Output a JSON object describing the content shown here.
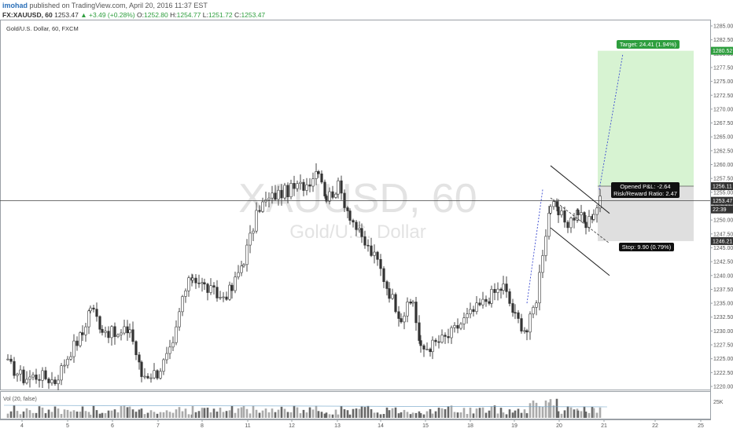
{
  "header": {
    "user": "imohad",
    "published": "published on TradingView.com, April 20, 2016 11:37 EST",
    "symbol": "FX:XAUUSD, 60",
    "last": "1253.47",
    "change": "+3.49 (+0.28%)",
    "o_label": "O:",
    "o": "1252.80",
    "h_label": "H:",
    "h": "1254.77",
    "l_label": "L:",
    "l": "1251.72",
    "c_label": "C:",
    "c": "1253.47"
  },
  "chart_data": {
    "type": "candlestick",
    "title": "Gold/U.S. Dollar, 60, FXCM",
    "watermark_symbol": "XAUUSD, 60",
    "watermark_name": "Gold/U.S. Dollar",
    "ylim": [
      1218.5,
      1286.5
    ],
    "y_ticks": [
      "1285.00",
      "1282.50",
      "1280.00",
      "1277.50",
      "1275.00",
      "1272.50",
      "1270.00",
      "1267.50",
      "1265.00",
      "1262.50",
      "1260.00",
      "1257.50",
      "1255.00",
      "1252.50",
      "1250.00",
      "1247.50",
      "1245.00",
      "1242.50",
      "1240.00",
      "1237.50",
      "1235.00",
      "1232.50",
      "1230.00",
      "1227.50",
      "1225.00",
      "1222.50",
      "1220.00"
    ],
    "x_ticks": [
      "4",
      "5",
      "6",
      "7",
      "8",
      "11",
      "12",
      "13",
      "14",
      "15",
      "18",
      "19",
      "20",
      "21",
      "22",
      "25"
    ],
    "price_path": [
      {
        "bar": 0,
        "price": 1224.0
      },
      {
        "bar": 20,
        "price": 1221.5
      },
      {
        "bar": 40,
        "price": 1222.0
      },
      {
        "bar": 60,
        "price": 1221.0
      },
      {
        "bar": 80,
        "price": 1226.5
      },
      {
        "bar": 95,
        "price": 1229.5
      },
      {
        "bar": 105,
        "price": 1234.5
      },
      {
        "bar": 120,
        "price": 1230.5
      },
      {
        "bar": 140,
        "price": 1229.0
      },
      {
        "bar": 155,
        "price": 1230.5
      },
      {
        "bar": 170,
        "price": 1222.0
      },
      {
        "bar": 190,
        "price": 1222.5
      },
      {
        "bar": 210,
        "price": 1227.0
      },
      {
        "bar": 222,
        "price": 1236.0
      },
      {
        "bar": 235,
        "price": 1240.0
      },
      {
        "bar": 250,
        "price": 1238.0
      },
      {
        "bar": 270,
        "price": 1236.0
      },
      {
        "bar": 285,
        "price": 1237.5
      },
      {
        "bar": 300,
        "price": 1243.0
      },
      {
        "bar": 320,
        "price": 1252.5
      },
      {
        "bar": 340,
        "price": 1254.5
      },
      {
        "bar": 360,
        "price": 1255.5
      },
      {
        "bar": 380,
        "price": 1256.5
      },
      {
        "bar": 395,
        "price": 1259.5
      },
      {
        "bar": 405,
        "price": 1254.0
      },
      {
        "bar": 420,
        "price": 1256.0
      },
      {
        "bar": 435,
        "price": 1251.0
      },
      {
        "bar": 450,
        "price": 1246.5
      },
      {
        "bar": 470,
        "price": 1242.5
      },
      {
        "bar": 485,
        "price": 1237.0
      },
      {
        "bar": 500,
        "price": 1232.5
      },
      {
        "bar": 515,
        "price": 1235.5
      },
      {
        "bar": 525,
        "price": 1226.5
      },
      {
        "bar": 540,
        "price": 1227.5
      },
      {
        "bar": 560,
        "price": 1229.0
      },
      {
        "bar": 580,
        "price": 1232.0
      },
      {
        "bar": 600,
        "price": 1234.5
      },
      {
        "bar": 615,
        "price": 1236.5
      },
      {
        "bar": 630,
        "price": 1238.0
      },
      {
        "bar": 645,
        "price": 1232.5
      },
      {
        "bar": 660,
        "price": 1230.0
      },
      {
        "bar": 672,
        "price": 1236.0
      },
      {
        "bar": 680,
        "price": 1244.5
      },
      {
        "bar": 690,
        "price": 1253.0
      },
      {
        "bar": 700,
        "price": 1251.0
      },
      {
        "bar": 712,
        "price": 1249.5
      },
      {
        "bar": 725,
        "price": 1251.5
      },
      {
        "bar": 735,
        "price": 1249.0
      },
      {
        "bar": 745,
        "price": 1251.5
      },
      {
        "bar": 755,
        "price": 1254.0
      }
    ],
    "volume_axis_label": "25K",
    "volume_label": "Vol (20, false)",
    "last_price_label": "1253.47",
    "countdown_label": "22:39",
    "long_position": {
      "entry": 1256.11,
      "target": 1280.52,
      "stop": 1246.21,
      "target_text": "Target: 24.41 (1.94%)",
      "stop_text": "Stop: 9.90 (0.79%)",
      "pnl_text": "Opened P&L: -2.64",
      "rr_text": "Risk/Reward Ratio: 2.47",
      "entry_label": "1256.11",
      "target_label": "1280.52",
      "stop_label": "1246.21"
    },
    "colors": {
      "target_zone": "#c9efc3",
      "stop_zone": "#d4d4d4",
      "target_badge": "#2e9e3e",
      "label_dark": "#111111",
      "projection": "#3b4bd0"
    }
  }
}
